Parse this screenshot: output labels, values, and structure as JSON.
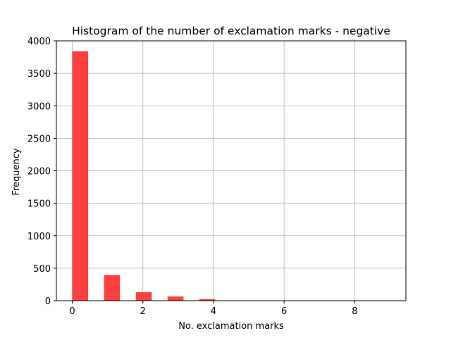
{
  "chart_data": {
    "type": "bar",
    "title": "Histogram of the number of exclamation marks - negative",
    "xlabel": "No. exclamation marks",
    "ylabel": "Frequency",
    "xlim": [
      -0.45,
      9.45
    ],
    "ylim": [
      0,
      4000
    ],
    "x_ticks": [
      0,
      2,
      4,
      6,
      8
    ],
    "y_ticks": [
      0,
      500,
      1000,
      1500,
      2000,
      2500,
      3000,
      3500,
      4000
    ],
    "grid": true,
    "bar_color": "#ff4040",
    "bins": [
      {
        "x0": 0.0,
        "x1": 0.45,
        "value": 3840
      },
      {
        "x0": 0.9,
        "x1": 1.35,
        "value": 395
      },
      {
        "x0": 1.8,
        "x1": 2.25,
        "value": 130
      },
      {
        "x0": 2.7,
        "x1": 3.15,
        "value": 65
      },
      {
        "x0": 3.6,
        "x1": 4.05,
        "value": 25
      },
      {
        "x0": 4.5,
        "x1": 4.95,
        "value": 5
      },
      {
        "x0": 5.4,
        "x1": 5.85,
        "value": 2
      },
      {
        "x0": 6.3,
        "x1": 6.75,
        "value": 1
      },
      {
        "x0": 7.2,
        "x1": 7.65,
        "value": 1
      },
      {
        "x0": 8.1,
        "x1": 8.55,
        "value": 1
      }
    ]
  }
}
